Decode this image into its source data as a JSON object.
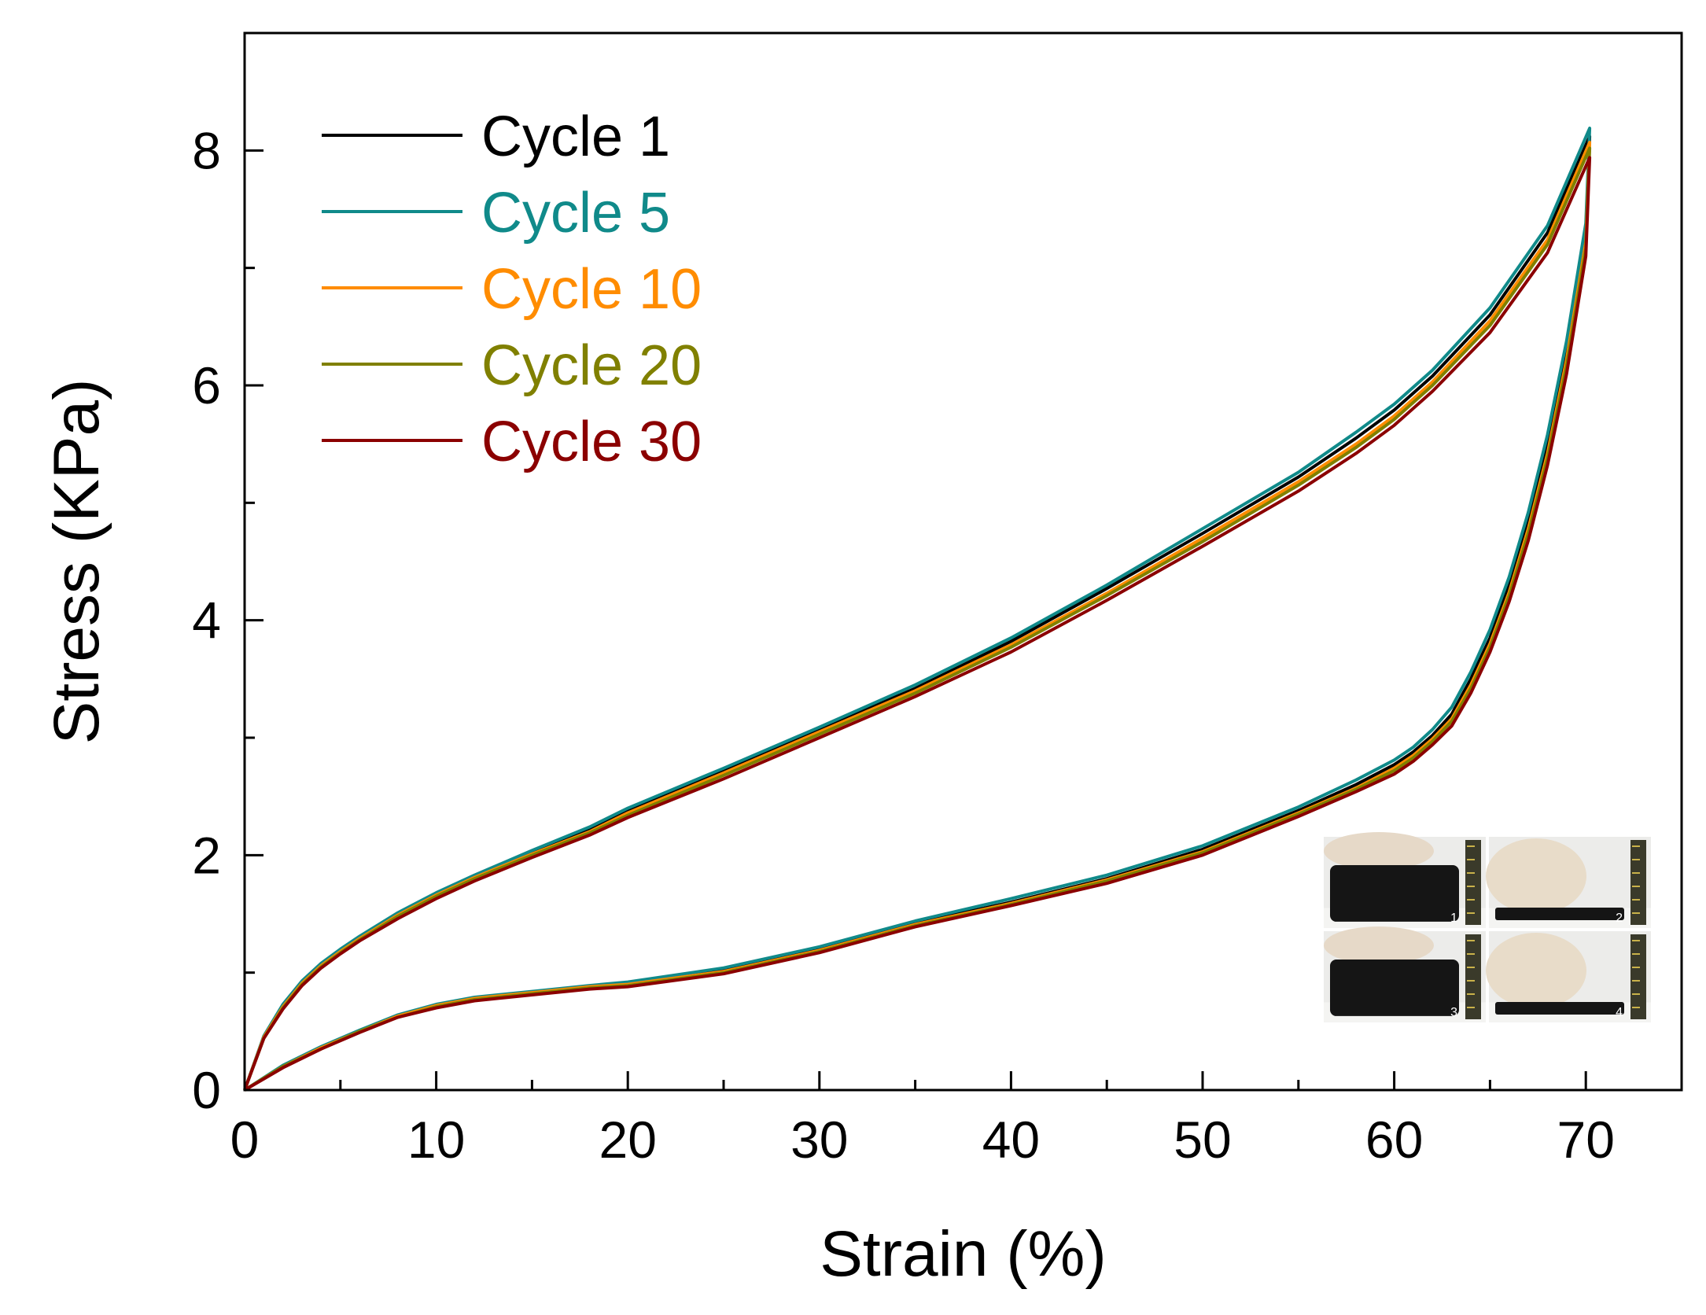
{
  "chart_data": {
    "type": "line",
    "title": "",
    "xlabel": "Strain (%)",
    "ylabel": "Stress (KPa)",
    "xlim": [
      0,
      75
    ],
    "ylim": [
      0,
      9
    ],
    "x_ticks": [
      0,
      10,
      20,
      30,
      40,
      50,
      60,
      70
    ],
    "y_ticks": [
      0,
      2,
      4,
      6,
      8
    ],
    "grid": false,
    "legend_position": "top-left",
    "note": "Each series is a closed hysteresis loop: loading points ordered 0→70 followed by unloading points ordered 70→0.",
    "series": [
      {
        "name": "Cycle 1",
        "color": "#000000",
        "loading": {
          "x": [
            0,
            1,
            2,
            3,
            4,
            5,
            6,
            8,
            10,
            12,
            15,
            18,
            20,
            25,
            30,
            35,
            40,
            45,
            50,
            55,
            58,
            60,
            62,
            65,
            68,
            70.2
          ],
          "y": [
            0,
            0.45,
            0.72,
            0.92,
            1.07,
            1.19,
            1.3,
            1.5,
            1.67,
            1.82,
            2.02,
            2.22,
            2.38,
            2.72,
            3.07,
            3.42,
            3.82,
            4.27,
            4.74,
            5.22,
            5.55,
            5.79,
            6.08,
            6.6,
            7.3,
            8.12
          ]
        },
        "unloading": {
          "x": [
            70.2,
            70,
            69,
            68,
            67,
            66,
            65,
            64,
            63,
            62,
            61,
            60,
            58,
            55,
            50,
            45,
            40,
            35,
            30,
            25,
            20,
            18,
            15,
            12,
            10,
            8,
            6,
            4,
            2,
            0
          ],
          "y": [
            8.12,
            7.3,
            6.3,
            5.5,
            4.85,
            4.3,
            3.85,
            3.5,
            3.2,
            3.02,
            2.88,
            2.77,
            2.6,
            2.38,
            2.05,
            1.8,
            1.6,
            1.42,
            1.2,
            1.02,
            0.9,
            0.88,
            0.83,
            0.78,
            0.72,
            0.63,
            0.5,
            0.36,
            0.2,
            0
          ]
        }
      },
      {
        "name": "Cycle 5",
        "color": "#108a8a",
        "loading": {
          "x": [
            0,
            1,
            2,
            3,
            4,
            5,
            6,
            8,
            10,
            12,
            15,
            18,
            20,
            25,
            30,
            35,
            40,
            45,
            50,
            55,
            58,
            60,
            62,
            65,
            68,
            70.2
          ],
          "y": [
            0,
            0.46,
            0.73,
            0.93,
            1.08,
            1.2,
            1.31,
            1.51,
            1.68,
            1.83,
            2.04,
            2.24,
            2.4,
            2.74,
            3.09,
            3.45,
            3.85,
            4.3,
            4.78,
            5.26,
            5.6,
            5.84,
            6.13,
            6.66,
            7.36,
            8.19
          ]
        },
        "unloading": {
          "x": [
            70.2,
            70,
            69,
            68,
            67,
            66,
            65,
            64,
            63,
            62,
            61,
            60,
            58,
            55,
            50,
            45,
            40,
            35,
            30,
            25,
            20,
            18,
            15,
            12,
            10,
            8,
            6,
            4,
            2,
            0
          ],
          "y": [
            8.19,
            7.38,
            6.38,
            5.58,
            4.92,
            4.37,
            3.92,
            3.56,
            3.26,
            3.07,
            2.92,
            2.81,
            2.64,
            2.41,
            2.08,
            1.83,
            1.63,
            1.44,
            1.22,
            1.04,
            0.92,
            0.89,
            0.84,
            0.79,
            0.73,
            0.64,
            0.51,
            0.37,
            0.21,
            0
          ]
        }
      },
      {
        "name": "Cycle 10",
        "color": "#ff8c00",
        "loading": {
          "x": [
            0,
            1,
            2,
            3,
            4,
            5,
            6,
            8,
            10,
            12,
            15,
            18,
            20,
            25,
            30,
            35,
            40,
            45,
            50,
            55,
            58,
            60,
            62,
            65,
            68,
            70.2
          ],
          "y": [
            0,
            0.45,
            0.71,
            0.91,
            1.06,
            1.18,
            1.29,
            1.49,
            1.66,
            1.81,
            2.01,
            2.2,
            2.36,
            2.7,
            3.05,
            3.4,
            3.79,
            4.23,
            4.7,
            5.18,
            5.5,
            5.74,
            6.03,
            6.55,
            7.24,
            8.07
          ]
        },
        "unloading": {
          "x": [
            70.2,
            70,
            69,
            68,
            67,
            66,
            65,
            64,
            63,
            62,
            61,
            60,
            58,
            55,
            50,
            45,
            40,
            35,
            30,
            25,
            20,
            18,
            15,
            12,
            10,
            8,
            6,
            4,
            2,
            0
          ],
          "y": [
            8.07,
            7.22,
            6.22,
            5.42,
            4.78,
            4.24,
            3.8,
            3.45,
            3.16,
            2.99,
            2.85,
            2.74,
            2.57,
            2.36,
            2.03,
            1.79,
            1.59,
            1.41,
            1.19,
            1.01,
            0.9,
            0.88,
            0.83,
            0.78,
            0.72,
            0.63,
            0.5,
            0.36,
            0.2,
            0
          ]
        }
      },
      {
        "name": "Cycle 20",
        "color": "#808000",
        "loading": {
          "x": [
            0,
            1,
            2,
            3,
            4,
            5,
            6,
            8,
            10,
            12,
            15,
            18,
            20,
            25,
            30,
            35,
            40,
            45,
            50,
            55,
            58,
            60,
            62,
            65,
            68,
            70.2
          ],
          "y": [
            0,
            0.44,
            0.7,
            0.9,
            1.05,
            1.17,
            1.28,
            1.48,
            1.65,
            1.8,
            2.0,
            2.19,
            2.34,
            2.68,
            3.03,
            3.38,
            3.77,
            4.21,
            4.67,
            5.15,
            5.47,
            5.71,
            6.0,
            6.51,
            7.2,
            8.02
          ]
        },
        "unloading": {
          "x": [
            70.2,
            70,
            69,
            68,
            67,
            66,
            65,
            64,
            63,
            62,
            61,
            60,
            58,
            55,
            50,
            45,
            40,
            35,
            30,
            25,
            20,
            18,
            15,
            12,
            10,
            8,
            6,
            4,
            2,
            0
          ],
          "y": [
            8.02,
            7.17,
            6.17,
            5.38,
            4.74,
            4.21,
            3.77,
            3.42,
            3.14,
            2.97,
            2.83,
            2.72,
            2.56,
            2.35,
            2.02,
            1.78,
            1.58,
            1.4,
            1.18,
            1.0,
            0.89,
            0.87,
            0.82,
            0.77,
            0.71,
            0.62,
            0.5,
            0.35,
            0.2,
            0
          ]
        }
      },
      {
        "name": "Cycle 30",
        "color": "#8b0000",
        "loading": {
          "x": [
            0,
            1,
            2,
            3,
            4,
            5,
            6,
            8,
            10,
            12,
            15,
            18,
            20,
            25,
            30,
            35,
            40,
            45,
            50,
            55,
            58,
            60,
            62,
            65,
            68,
            70.2
          ],
          "y": [
            0,
            0.44,
            0.69,
            0.89,
            1.04,
            1.16,
            1.27,
            1.46,
            1.63,
            1.78,
            1.98,
            2.17,
            2.32,
            2.65,
            3.0,
            3.35,
            3.73,
            4.17,
            4.63,
            5.1,
            5.42,
            5.66,
            5.95,
            6.45,
            7.13,
            7.94
          ]
        },
        "unloading": {
          "x": [
            70.2,
            70,
            69,
            68,
            67,
            66,
            65,
            64,
            63,
            62,
            61,
            60,
            58,
            55,
            50,
            45,
            40,
            35,
            30,
            25,
            20,
            18,
            15,
            12,
            10,
            8,
            6,
            4,
            2,
            0
          ],
          "y": [
            7.94,
            7.1,
            6.1,
            5.32,
            4.68,
            4.16,
            3.73,
            3.38,
            3.1,
            2.94,
            2.8,
            2.69,
            2.54,
            2.33,
            2.0,
            1.76,
            1.57,
            1.39,
            1.17,
            0.99,
            0.88,
            0.86,
            0.81,
            0.76,
            0.7,
            0.62,
            0.49,
            0.35,
            0.19,
            0
          ]
        }
      }
    ],
    "inset": {
      "description_labels": [
        "1",
        "2",
        "3",
        "4"
      ]
    }
  }
}
